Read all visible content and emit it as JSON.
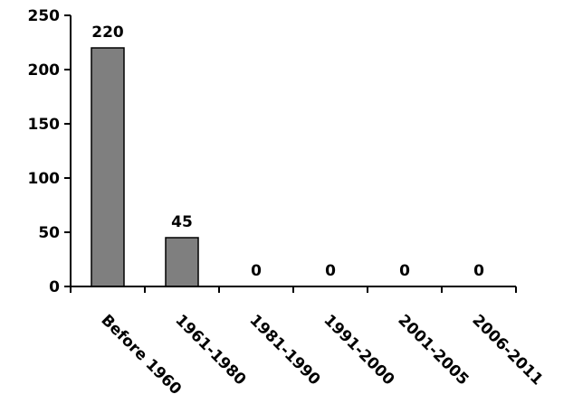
{
  "chart_data": {
    "type": "bar",
    "categories": [
      "Before 1960",
      "1961-1980",
      "1981-1990",
      "1991-2000",
      "2001-2005",
      "2006-2011"
    ],
    "values": [
      220,
      45,
      0,
      0,
      0,
      0
    ],
    "data_labels": [
      "220",
      "45",
      "0",
      "0",
      "0",
      "0"
    ],
    "title": "",
    "xlabel": "",
    "ylabel": "",
    "ylim": [
      0,
      250
    ],
    "yticks": [
      0,
      50,
      100,
      150,
      200,
      250
    ],
    "ytick_labels": [
      "0",
      "50",
      "100",
      "150",
      "200",
      "250"
    ],
    "grid": false,
    "legend": "none",
    "bar_color": "#7f7f7f",
    "bar_edge_color": "#000000"
  }
}
